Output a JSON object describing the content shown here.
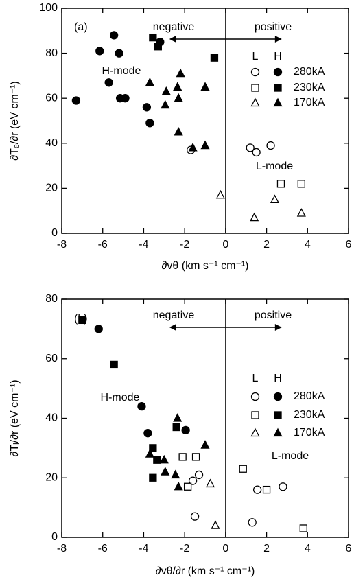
{
  "chart_data": [
    {
      "type": "scatter",
      "panel_label": "(a)",
      "xlabel": "∂vθ (km s⁻¹ cm⁻¹)",
      "ylabel": "∂Tₑ/∂r (eV cm⁻¹)",
      "xlim": [
        -8,
        6
      ],
      "xticks": [
        -8,
        -6,
        -4,
        -2,
        0,
        2,
        4,
        6
      ],
      "ylim": [
        0,
        100
      ],
      "yticks": [
        0,
        20,
        40,
        60,
        80,
        100
      ],
      "divider_x": 0,
      "annotations": [
        "negative",
        "positive",
        "H-mode",
        "L-mode"
      ],
      "legend_columns": [
        "L",
        "H"
      ],
      "groups": [
        {
          "name": "280kA",
          "marker": "circle",
          "series": [
            {
              "filled": false,
              "x": [
                -1.7,
                1.2,
                1.5,
                2.2
              ],
              "values": [
                37,
                38,
                36,
                39
              ]
            },
            {
              "filled": true,
              "x": [
                -7.3,
                -6.15,
                -5.45,
                -5.2,
                -5.7,
                -5.15,
                -4.9,
                -3.85,
                -3.7,
                -3.2
              ],
              "values": [
                59,
                81,
                88,
                80,
                67,
                60,
                60,
                56,
                49,
                85
              ]
            }
          ]
        },
        {
          "name": "230kA",
          "marker": "square",
          "series": [
            {
              "filled": false,
              "x": [
                2.7,
                3.7
              ],
              "values": [
                22,
                22
              ]
            },
            {
              "filled": true,
              "x": [
                -3.55,
                -3.3,
                -0.55
              ],
              "values": [
                87,
                83,
                78
              ]
            }
          ]
        },
        {
          "name": "170kA",
          "marker": "triangle",
          "series": [
            {
              "filled": false,
              "x": [
                -0.25,
                1.4,
                2.4,
                3.7
              ],
              "values": [
                17,
                7,
                15,
                9
              ]
            },
            {
              "filled": true,
              "x": [
                -3.7,
                -2.9,
                -2.95,
                -2.35,
                -2.3,
                -2.2,
                -2.3,
                -1.6,
                -1.0,
                -1.0
              ],
              "values": [
                67,
                63,
                57,
                65,
                60,
                71,
                45,
                38,
                39,
                65
              ]
            }
          ]
        }
      ],
      "color": "#000000"
    },
    {
      "type": "scatter",
      "panel_label": "(b)",
      "xlabel": "∂vθ/∂r (km s⁻¹ cm⁻¹)",
      "ylabel": "∂Tᵢ/∂r (eV cm⁻¹)",
      "xlim": [
        -8,
        6
      ],
      "xticks": [
        -8,
        -6,
        -4,
        -2,
        0,
        2,
        4,
        6
      ],
      "ylim": [
        0,
        80
      ],
      "yticks": [
        0,
        20,
        40,
        60,
        80
      ],
      "divider_x": 0,
      "annotations": [
        "negative",
        "positive",
        "H-mode",
        "L-mode"
      ],
      "legend_columns": [
        "L",
        "H"
      ],
      "groups": [
        {
          "name": "280kA",
          "marker": "circle",
          "series": [
            {
              "filled": false,
              "x": [
                -1.5,
                -1.3,
                -1.6,
                1.3,
                1.55,
                2.8
              ],
              "values": [
                7,
                21,
                19,
                5,
                16,
                17
              ]
            },
            {
              "filled": true,
              "x": [
                -6.2,
                -4.1,
                -3.8,
                -1.95
              ],
              "values": [
                70,
                44,
                35,
                36
              ]
            }
          ]
        },
        {
          "name": "230kA",
          "marker": "square",
          "series": [
            {
              "filled": false,
              "x": [
                -2.1,
                -1.45,
                -1.85,
                0.85,
                2.0,
                3.8
              ],
              "values": [
                27,
                27,
                17,
                23,
                16,
                3
              ]
            },
            {
              "filled": true,
              "x": [
                -7.0,
                -5.45,
                -3.55,
                -3.35,
                -3.55,
                -2.4
              ],
              "values": [
                73,
                58,
                30,
                26,
                20,
                37
              ]
            }
          ]
        },
        {
          "name": "170kA",
          "marker": "triangle",
          "series": [
            {
              "filled": false,
              "x": [
                -0.75,
                -0.5
              ],
              "values": [
                18,
                4
              ]
            },
            {
              "filled": true,
              "x": [
                -3.7,
                -2.95,
                -2.35,
                -2.45,
                -1.0,
                -2.3,
                -3.0
              ],
              "values": [
                28,
                22,
                40,
                21,
                31,
                17,
                26
              ]
            }
          ]
        }
      ],
      "color": "#000000"
    }
  ]
}
